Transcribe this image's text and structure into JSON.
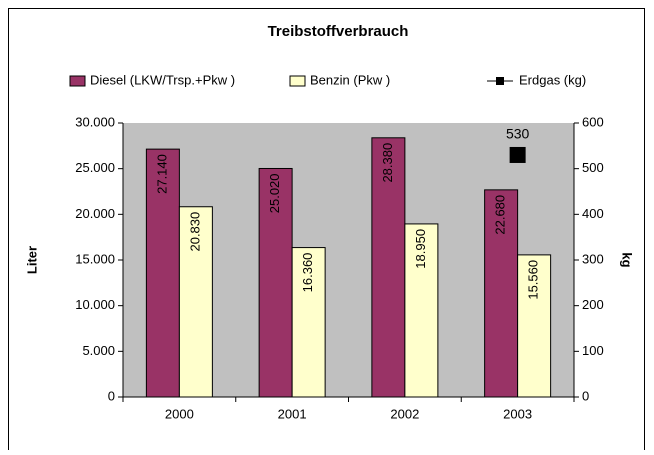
{
  "chart_data": {
    "type": "bar",
    "title": "Treibstoffverbrauch",
    "categories": [
      "2000",
      "2001",
      "2002",
      "2003"
    ],
    "series": [
      {
        "name": "Diesel (LKW/Trsp.+Pkw )",
        "color": "#993366",
        "values": [
          27140,
          25020,
          28380,
          22680
        ],
        "value_labels": [
          "27.140",
          "25.020",
          "28.380",
          "22.680"
        ],
        "label_color": "#ffffff"
      },
      {
        "name": "Benzin (Pkw )",
        "color": "#ffffcc",
        "values": [
          20830,
          16360,
          18950,
          15560
        ],
        "value_labels": [
          "20.830",
          "16.360",
          "18.950",
          "15.560"
        ],
        "label_color": "#000000"
      },
      {
        "name": "Erdgas (kg)",
        "type": "line",
        "axis": "y2",
        "color": "#000000",
        "values": [
          null,
          null,
          null,
          530
        ]
      }
    ],
    "ylabel": "Liter",
    "y2label": "kg",
    "ylim": [
      0,
      30000
    ],
    "yticks": [
      {
        "value": 0,
        "label": "0"
      },
      {
        "value": 5000,
        "label": "5.000"
      },
      {
        "value": 10000,
        "label": "10.000"
      },
      {
        "value": 15000,
        "label": "15.000"
      },
      {
        "value": 20000,
        "label": "20.000"
      },
      {
        "value": 25000,
        "label": "25.000"
      },
      {
        "value": 30000,
        "label": "30.000"
      }
    ],
    "y2lim": [
      0,
      600
    ],
    "y2ticks": [
      0,
      100,
      200,
      300,
      400,
      500,
      600
    ],
    "grid": false,
    "plot_background": "#c0c0c0",
    "legend": "top"
  }
}
